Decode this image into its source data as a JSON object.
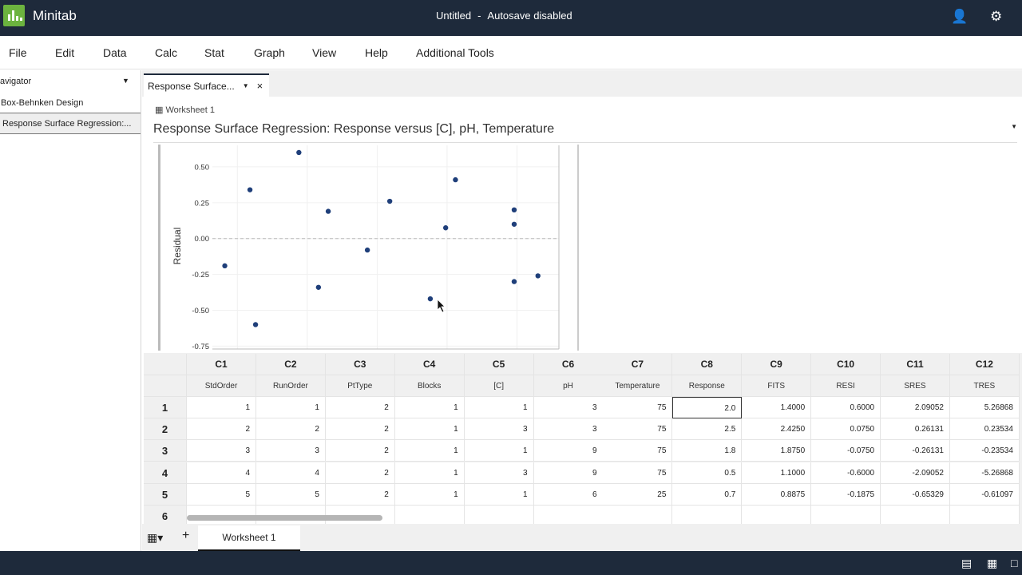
{
  "app": {
    "name": "Minitab",
    "title": "Untitled",
    "title_sep": "-",
    "autosave": "Autosave disabled"
  },
  "menu": [
    "File",
    "Edit",
    "Data",
    "Calc",
    "Stat",
    "Graph",
    "View",
    "Help",
    "Additional Tools"
  ],
  "navigator": {
    "header": "avigator",
    "items": [
      "Box-Behnken Design",
      "Response Surface Regression:..."
    ]
  },
  "output_tab": {
    "label": "Response Surface..."
  },
  "output": {
    "worksheet": "Worksheet 1",
    "title": "Response Surface Regression: Response versus [C], pH, Temperature"
  },
  "chart_data": {
    "type": "scatter",
    "ylabel": "Residual",
    "yticks": [
      "0.50",
      "0.25",
      "0.00",
      "-0.25",
      "-0.50",
      "-0.75"
    ],
    "ylim": [
      -0.77,
      0.65
    ],
    "xlim": [
      0.45,
      3.3
    ],
    "reference_line_y": 0,
    "points": [
      [
        0.91,
        -0.19
      ],
      [
        1.09,
        0.34
      ],
      [
        1.13,
        -0.6
      ],
      [
        1.44,
        0.6
      ],
      [
        1.58,
        -0.34
      ],
      [
        1.65,
        0.19
      ],
      [
        1.93,
        -0.08
      ],
      [
        2.09,
        0.26
      ],
      [
        2.38,
        -0.42
      ],
      [
        2.49,
        0.075
      ],
      [
        2.56,
        0.41
      ],
      [
        2.98,
        0.2
      ],
      [
        2.98,
        0.1
      ],
      [
        2.98,
        -0.3
      ],
      [
        3.15,
        -0.26
      ]
    ],
    "point_color": "#1f3f7a"
  },
  "worksheet": {
    "col_ids": [
      "C1",
      "C2",
      "C3",
      "C4",
      "C5",
      "C6",
      "C7",
      "C8",
      "C9",
      "C10",
      "C11",
      "C12"
    ],
    "col_names": [
      "StdOrder",
      "RunOrder",
      "PtType",
      "Blocks",
      "[C]",
      "pH",
      "Temperature",
      "Response",
      "FITS",
      "RESI",
      "SRES",
      "TRES"
    ],
    "rows": [
      [
        "1",
        "1",
        "2",
        "1",
        "1",
        "3",
        "75",
        "2.0",
        "1.4000",
        "0.6000",
        "2.09052",
        "5.26868"
      ],
      [
        "2",
        "2",
        "2",
        "1",
        "3",
        "3",
        "75",
        "2.5",
        "2.4250",
        "0.0750",
        "0.26131",
        "0.23534"
      ],
      [
        "3",
        "3",
        "2",
        "1",
        "1",
        "9",
        "75",
        "1.8",
        "1.8750",
        "-0.0750",
        "-0.26131",
        "-0.23534"
      ],
      [
        "4",
        "4",
        "2",
        "1",
        "3",
        "9",
        "75",
        "0.5",
        "1.1000",
        "-0.6000",
        "-2.09052",
        "-5.26868"
      ],
      [
        "5",
        "5",
        "2",
        "1",
        "1",
        "6",
        "25",
        "0.7",
        "0.8875",
        "-0.1875",
        "-0.65329",
        "-0.61097"
      ]
    ],
    "row_numbers": [
      "1",
      "2",
      "3",
      "4",
      "5",
      "6"
    ],
    "sheet_tab": "Worksheet 1",
    "add": "+"
  }
}
